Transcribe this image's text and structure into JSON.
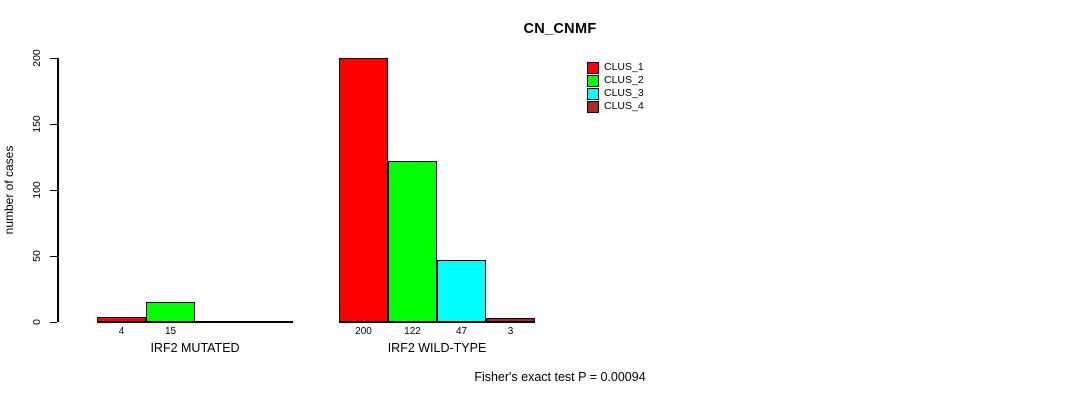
{
  "chart_data": {
    "type": "bar",
    "title": "CN_CNMF",
    "xlabel": "",
    "ylabel": "number of cases",
    "ylim": [
      0,
      200
    ],
    "yticks": [
      0,
      50,
      100,
      150,
      200
    ],
    "grid": false,
    "legend_position": "top-right",
    "categories": [
      "CLUS_1",
      "CLUS_2",
      "CLUS_3",
      "CLUS_4"
    ],
    "colors": [
      "#ff0000",
      "#00ff00",
      "#00ffff",
      "#a52a2a"
    ],
    "groups": [
      {
        "label": "IRF2 MUTATED",
        "values": [
          4,
          15,
          0,
          0
        ],
        "bar_labels": [
          "4",
          "15",
          "",
          ""
        ]
      },
      {
        "label": "IRF2 WILD-TYPE",
        "values": [
          200,
          122,
          47,
          3
        ],
        "bar_labels": [
          "200",
          "122",
          "47",
          "3"
        ]
      }
    ],
    "annotation": "Fisher's exact test P = 0.00094"
  }
}
